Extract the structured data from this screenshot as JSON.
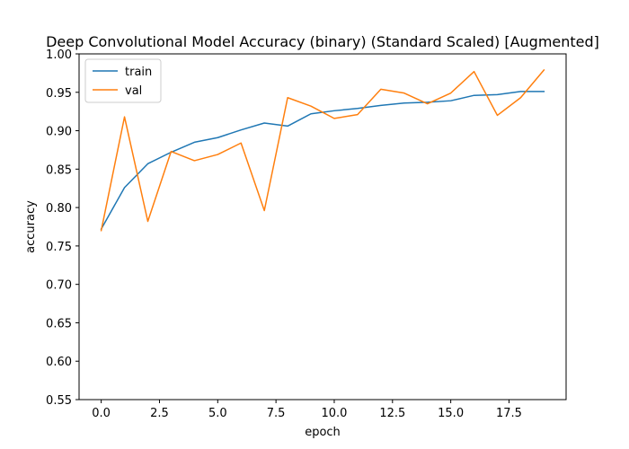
{
  "chart_data": {
    "type": "line",
    "title": "Deep Convolutional Model Accuracy (binary) (Standard Scaled) [Augmented]",
    "xlabel": "epoch",
    "ylabel": "accuracy",
    "xlim": [
      -0.95,
      19.95
    ],
    "ylim": [
      0.55,
      1.0
    ],
    "xticks": [
      0.0,
      2.5,
      5.0,
      7.5,
      10.0,
      12.5,
      15.0,
      17.5
    ],
    "xtick_labels": [
      "0.0",
      "2.5",
      "5.0",
      "7.5",
      "10.0",
      "12.5",
      "15.0",
      "17.5"
    ],
    "yticks": [
      0.55,
      0.6,
      0.65,
      0.7,
      0.75,
      0.8,
      0.85,
      0.9,
      0.95,
      1.0
    ],
    "ytick_labels": [
      "0.55",
      "0.60",
      "0.65",
      "0.70",
      "0.75",
      "0.80",
      "0.85",
      "0.90",
      "0.95",
      "1.00"
    ],
    "grid": false,
    "legend_position": "top-left",
    "x": [
      0,
      1,
      2,
      3,
      4,
      5,
      6,
      7,
      8,
      9,
      10,
      11,
      12,
      13,
      14,
      15,
      16,
      17,
      18,
      19
    ],
    "series": [
      {
        "name": "train",
        "color": "#1f77b4",
        "values": [
          0.772,
          0.826,
          0.857,
          0.872,
          0.885,
          0.891,
          0.901,
          0.91,
          0.906,
          0.922,
          0.926,
          0.929,
          0.933,
          0.936,
          0.937,
          0.939,
          0.946,
          0.947,
          0.951,
          0.951
        ]
      },
      {
        "name": "val",
        "color": "#ff7f0e",
        "values": [
          0.77,
          0.918,
          0.782,
          0.873,
          0.861,
          0.869,
          0.884,
          0.796,
          0.943,
          0.932,
          0.916,
          0.921,
          0.954,
          0.949,
          0.935,
          0.949,
          0.977,
          0.92,
          0.943,
          0.979
        ]
      }
    ]
  }
}
